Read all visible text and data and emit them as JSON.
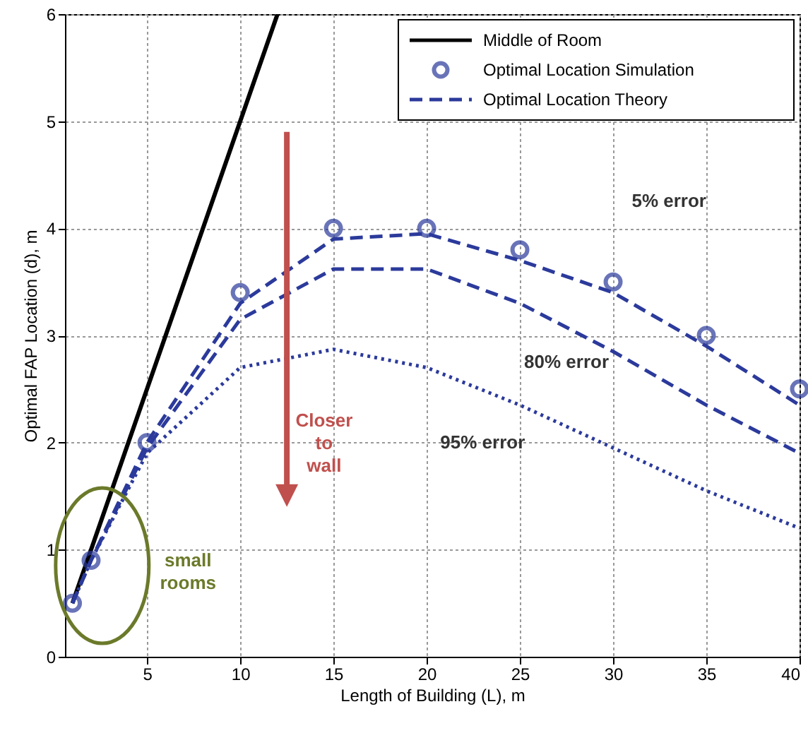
{
  "chart_data": {
    "type": "line",
    "xlabel": "Length of Building (L), m",
    "ylabel": "Optimal FAP Location (d), m",
    "x": [
      1,
      2,
      5,
      10,
      15,
      20,
      25,
      30,
      35,
      40
    ],
    "series": [
      {
        "name": "Middle of Room",
        "color": "#000000",
        "line_style": "solid",
        "x": [
          1,
          12
        ],
        "values": [
          0.5,
          6
        ]
      },
      {
        "name": "Optimal Location Simulation",
        "type": "scatter",
        "color": "#2b3a9b",
        "marker": "circle",
        "values": [
          0.5,
          0.9,
          2.0,
          3.4,
          4.0,
          4.0,
          3.8,
          3.5,
          3.0,
          2.5
        ]
      },
      {
        "name": "Optimal Location Theory",
        "color": "#2b3a9b",
        "line_style": "dashed",
        "values": [
          0.5,
          0.9,
          2.0,
          3.3,
          3.9,
          3.95,
          3.7,
          3.4,
          2.9,
          2.35
        ]
      },
      {
        "color": "#2b3a9b",
        "line_style": "dashed",
        "values": [
          0.5,
          0.9,
          1.95,
          3.15,
          3.62,
          3.62,
          3.3,
          2.85,
          2.35,
          1.9
        ]
      },
      {
        "color": "#2b3a9b",
        "line_style": "dotted",
        "values": [
          0.5,
          0.9,
          1.9,
          2.7,
          2.87,
          2.7,
          2.35,
          1.95,
          1.55,
          1.2
        ]
      }
    ],
    "annotations": [
      "5% error",
      "80% error",
      "95% error",
      "Closer to wall",
      "small rooms"
    ],
    "xlim": [
      0.6,
      40
    ],
    "xticks": [
      5,
      10,
      15,
      20,
      25,
      30,
      35,
      40
    ],
    "ylim": [
      0,
      6
    ],
    "yticks": [
      0,
      1,
      2,
      3,
      4,
      5,
      6
    ],
    "grid": true,
    "legend": "top right"
  }
}
